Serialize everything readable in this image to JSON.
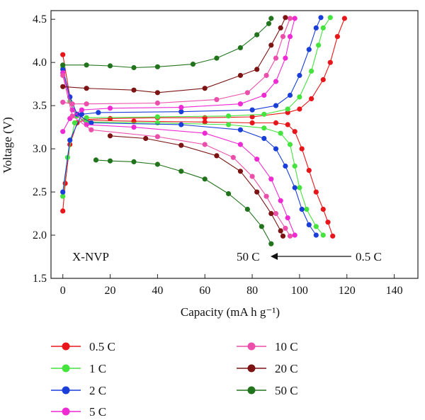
{
  "chart_data": {
    "type": "line",
    "title": "",
    "xlabel": "Capacity (mA h g⁻¹)",
    "ylabel": "Voltage (V)",
    "xlim": [
      -5,
      150
    ],
    "ylim": [
      1.5,
      4.6
    ],
    "xticks": [
      "0",
      "20",
      "40",
      "60",
      "80",
      "100",
      "120",
      "140"
    ],
    "yticks": [
      "1.5",
      "2.0",
      "2.5",
      "3.0",
      "3.5",
      "4.0",
      "4.5"
    ],
    "xtick_values": [
      0,
      20,
      40,
      60,
      80,
      100,
      120,
      140
    ],
    "ytick_values": [
      1.5,
      2.0,
      2.5,
      3.0,
      3.5,
      4.0,
      4.5
    ],
    "annotations": {
      "sample": "X-NVP",
      "arrow_from": "0.5 C",
      "arrow_to": "50 C"
    },
    "grid": false,
    "legend_position": "bottom",
    "series": [
      {
        "name": "0.5 C",
        "color": "#e8161b",
        "charge": [
          [
            0,
            2.28
          ],
          [
            1,
            2.6
          ],
          [
            3,
            3.05
          ],
          [
            6,
            3.3
          ],
          [
            10,
            3.34
          ],
          [
            20,
            3.35
          ],
          [
            40,
            3.36
          ],
          [
            60,
            3.36
          ],
          [
            80,
            3.37
          ],
          [
            95,
            3.42
          ],
          [
            100,
            3.46
          ],
          [
            105,
            3.58
          ],
          [
            110,
            3.8
          ],
          [
            113,
            4.0
          ],
          [
            116,
            4.3
          ],
          [
            119,
            4.51
          ]
        ],
        "discharge": [
          [
            0,
            4.09
          ],
          [
            3,
            3.6
          ],
          [
            6,
            3.4
          ],
          [
            10,
            3.33
          ],
          [
            30,
            3.32
          ],
          [
            60,
            3.31
          ],
          [
            80,
            3.3
          ],
          [
            90,
            3.3
          ],
          [
            95,
            3.28
          ],
          [
            98,
            3.2
          ],
          [
            101,
            3.0
          ],
          [
            104,
            2.75
          ],
          [
            107,
            2.5
          ],
          [
            110,
            2.3
          ],
          [
            112,
            2.15
          ],
          [
            114,
            1.99
          ]
        ]
      },
      {
        "name": "1 C",
        "color": "#45e33e",
        "charge": [
          [
            0,
            2.45
          ],
          [
            2,
            2.9
          ],
          [
            5,
            3.3
          ],
          [
            10,
            3.36
          ],
          [
            40,
            3.37
          ],
          [
            70,
            3.38
          ],
          [
            85,
            3.4
          ],
          [
            95,
            3.46
          ],
          [
            100,
            3.6
          ],
          [
            105,
            3.9
          ],
          [
            108,
            4.2
          ],
          [
            110,
            4.4
          ],
          [
            113,
            4.52
          ]
        ],
        "discharge": [
          [
            0,
            3.95
          ],
          [
            3,
            3.55
          ],
          [
            6,
            3.38
          ],
          [
            10,
            3.31
          ],
          [
            40,
            3.3
          ],
          [
            70,
            3.28
          ],
          [
            85,
            3.24
          ],
          [
            92,
            3.18
          ],
          [
            96,
            3.05
          ],
          [
            98,
            2.8
          ],
          [
            100,
            2.55
          ],
          [
            103,
            2.3
          ],
          [
            107,
            2.1
          ],
          [
            110,
            2.0
          ]
        ]
      },
      {
        "name": "2 C",
        "color": "#1a3ed8",
        "charge": [
          [
            0,
            2.5
          ],
          [
            3,
            3.1
          ],
          [
            8,
            3.4
          ],
          [
            15,
            3.42
          ],
          [
            50,
            3.43
          ],
          [
            80,
            3.45
          ],
          [
            90,
            3.5
          ],
          [
            96,
            3.62
          ],
          [
            100,
            3.85
          ],
          [
            104,
            4.15
          ],
          [
            107,
            4.4
          ],
          [
            109,
            4.52
          ]
        ],
        "discharge": [
          [
            0,
            3.92
          ],
          [
            3,
            3.6
          ],
          [
            6,
            3.4
          ],
          [
            12,
            3.3
          ],
          [
            50,
            3.28
          ],
          [
            75,
            3.22
          ],
          [
            85,
            3.12
          ],
          [
            90,
            3.0
          ],
          [
            94,
            2.8
          ],
          [
            98,
            2.55
          ],
          [
            101,
            2.3
          ],
          [
            104,
            2.12
          ],
          [
            107,
            2.0
          ]
        ]
      },
      {
        "name": "5 C",
        "color": "#ee2ad3",
        "charge": [
          [
            0,
            3.2
          ],
          [
            3,
            3.35
          ],
          [
            8,
            3.45
          ],
          [
            20,
            3.47
          ],
          [
            50,
            3.48
          ],
          [
            75,
            3.52
          ],
          [
            85,
            3.62
          ],
          [
            90,
            3.78
          ],
          [
            94,
            4.05
          ],
          [
            96,
            4.3
          ],
          [
            98,
            4.51
          ]
        ],
        "discharge": [
          [
            0,
            3.88
          ],
          [
            4,
            3.45
          ],
          [
            10,
            3.28
          ],
          [
            30,
            3.25
          ],
          [
            60,
            3.18
          ],
          [
            75,
            3.05
          ],
          [
            82,
            2.88
          ],
          [
            88,
            2.65
          ],
          [
            92,
            2.4
          ],
          [
            95,
            2.2
          ],
          [
            98,
            2.0
          ]
        ]
      },
      {
        "name": "10 C",
        "color": "#ec4fab",
        "charge": [
          [
            0,
            3.54
          ],
          [
            4,
            3.52
          ],
          [
            10,
            3.52
          ],
          [
            40,
            3.53
          ],
          [
            65,
            3.57
          ],
          [
            78,
            3.65
          ],
          [
            86,
            3.85
          ],
          [
            90,
            4.05
          ],
          [
            93,
            4.3
          ],
          [
            96,
            4.51
          ]
        ],
        "discharge": [
          [
            0,
            3.85
          ],
          [
            4,
            3.38
          ],
          [
            12,
            3.22
          ],
          [
            40,
            3.14
          ],
          [
            60,
            3.05
          ],
          [
            72,
            2.9
          ],
          [
            80,
            2.68
          ],
          [
            86,
            2.45
          ],
          [
            90,
            2.25
          ],
          [
            94,
            2.08
          ],
          [
            96,
            1.99
          ]
        ]
      },
      {
        "name": "20 C",
        "color": "#7c1414",
        "charge": [
          [
            0,
            3.72
          ],
          [
            10,
            3.7
          ],
          [
            30,
            3.68
          ],
          [
            40,
            3.65
          ],
          [
            60,
            3.7
          ],
          [
            75,
            3.85
          ],
          [
            82,
            3.92
          ],
          [
            88,
            4.2
          ],
          [
            92,
            4.4
          ],
          [
            94,
            4.52
          ]
        ],
        "discharge": [
          [
            20,
            3.15
          ],
          [
            35,
            3.12
          ],
          [
            50,
            3.04
          ],
          [
            65,
            2.92
          ],
          [
            75,
            2.74
          ],
          [
            82,
            2.5
          ],
          [
            88,
            2.25
          ],
          [
            92,
            2.05
          ],
          [
            93,
            1.99
          ]
        ]
      },
      {
        "name": "50 C",
        "color": "#22741c",
        "charge": [
          [
            0,
            3.97
          ],
          [
            10,
            3.97
          ],
          [
            20,
            3.96
          ],
          [
            30,
            3.94
          ],
          [
            40,
            3.95
          ],
          [
            55,
            3.98
          ],
          [
            65,
            4.05
          ],
          [
            75,
            4.17
          ],
          [
            82,
            4.32
          ],
          [
            87,
            4.45
          ],
          [
            88,
            4.51
          ]
        ],
        "discharge": [
          [
            14,
            2.87
          ],
          [
            20,
            2.86
          ],
          [
            30,
            2.85
          ],
          [
            40,
            2.82
          ],
          [
            50,
            2.74
          ],
          [
            60,
            2.65
          ],
          [
            70,
            2.48
          ],
          [
            78,
            2.3
          ],
          [
            84,
            2.1
          ],
          [
            88,
            1.9
          ]
        ]
      }
    ]
  }
}
